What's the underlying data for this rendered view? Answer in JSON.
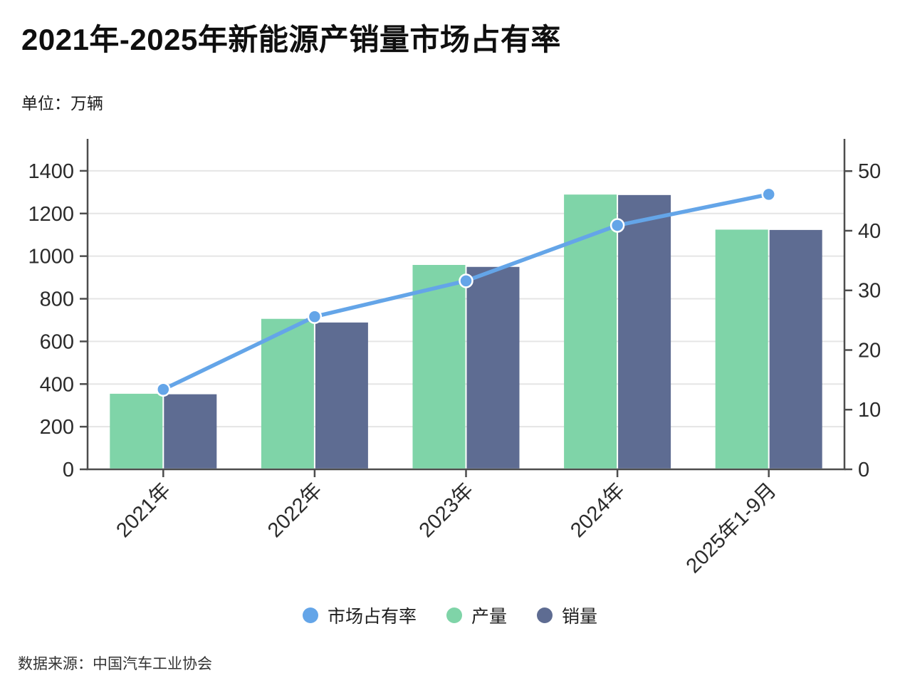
{
  "header": {
    "title": "2021年-2025年新能源产销量市场占有率",
    "unit_label": "单位：万辆"
  },
  "footer": {
    "source": "数据来源：中国汽车工业协会"
  },
  "colors": {
    "production_green": "#7fd4a8",
    "sales_slate": "#5e6c92",
    "share_blue": "#64a5e8",
    "grid": "#e5e5e5",
    "axis": "#4d4d4d",
    "tick_text": "#2b2b2b"
  },
  "chart_data": {
    "type": "bar+line combo, dual axis",
    "title": "2021年-2025年新能源产销量市场占有率",
    "categories": [
      "2021年",
      "2022年",
      "2023年",
      "2024年",
      "2025年1-9月"
    ],
    "series": [
      {
        "key": "market-share",
        "name": "市场占有率",
        "type": "line",
        "axis": "right",
        "color": "#64a5e8",
        "values": [
          13.4,
          25.6,
          31.6,
          40.9,
          46.1
        ]
      },
      {
        "key": "production",
        "name": "产量",
        "type": "bar",
        "axis": "left",
        "color": "#7fd4a8",
        "values": [
          354.5,
          705.8,
          958.7,
          1288.8,
          1124.3
        ]
      },
      {
        "key": "sales",
        "name": "销量",
        "type": "bar",
        "axis": "left",
        "color": "#5e6c92",
        "values": [
          352.1,
          688.7,
          949.5,
          1286.6,
          1122.8
        ]
      }
    ],
    "left_axis": {
      "ticks": [
        0,
        200,
        400,
        600,
        800,
        1000,
        1200,
        1400
      ],
      "max": 1550,
      "label": "万辆"
    },
    "right_axis": {
      "ticks": [
        0,
        10,
        20,
        30,
        40,
        50
      ],
      "max": 55.4,
      "label": "%"
    },
    "grid": true,
    "legend_position": "bottom",
    "x_label_rotation": -45
  }
}
